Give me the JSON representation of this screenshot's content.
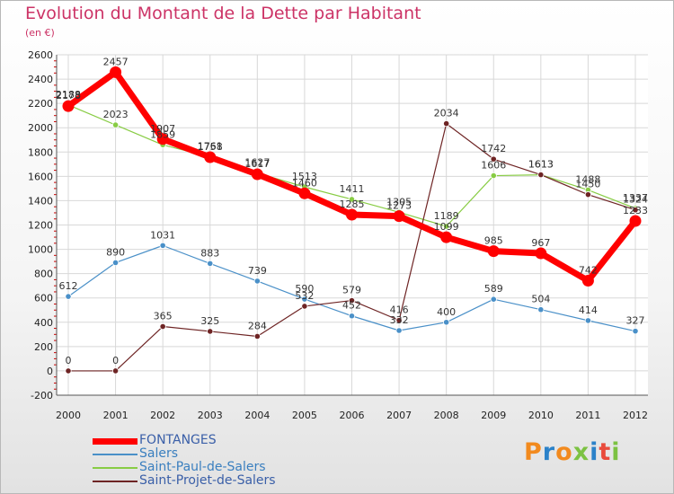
{
  "title": "Evolution du Montant de la Dette par Habitant",
  "subtitle": "(en €)",
  "logo": {
    "text": "Proxiti",
    "colors": [
      "#f28a1e",
      "#2b82c9",
      "#f28a1e",
      "#7cc242",
      "#2b82c9",
      "#e94b3c",
      "#7cc242"
    ]
  },
  "chart_data": {
    "type": "line",
    "title": "Evolution du Montant de la Dette par Habitant",
    "ylabel": "(en €)",
    "xlabel": "",
    "x": [
      "2000",
      "2001",
      "2002",
      "2003",
      "2004",
      "2005",
      "2006",
      "2007",
      "2008",
      "2009",
      "2010",
      "2011",
      "2012"
    ],
    "ylim": [
      -200,
      2600
    ],
    "yticks": [
      -200,
      0,
      200,
      400,
      600,
      800,
      1000,
      1200,
      1400,
      1600,
      1800,
      2000,
      2200,
      2400,
      2600
    ],
    "grid": true,
    "legend_position": "bottom-left",
    "series": [
      {
        "name": "FONTANGES",
        "color": "#ff0000",
        "values": [
          2178,
          2457,
          1907,
          1758,
          1617,
          1460,
          1285,
          1273,
          1099,
          985,
          967,
          742,
          1233
        ]
      },
      {
        "name": "Salers",
        "color": "#4a90c8",
        "values": [
          612,
          890,
          1031,
          883,
          739,
          590,
          452,
          332,
          400,
          589,
          504,
          414,
          327
        ]
      },
      {
        "name": "Saint-Paul-de-Salers",
        "color": "#88cc44",
        "values": [
          2188,
          2023,
          1859,
          1761,
          1627,
          1513,
          1411,
          1305,
          1189,
          1606,
          1613,
          1488,
          1337
        ]
      },
      {
        "name": "Saint-Projet-de-Salers",
        "color": "#6e2424",
        "values": [
          0,
          0,
          365,
          325,
          284,
          532,
          579,
          416,
          2034,
          1742,
          1613,
          1450,
          1324
        ]
      }
    ]
  }
}
